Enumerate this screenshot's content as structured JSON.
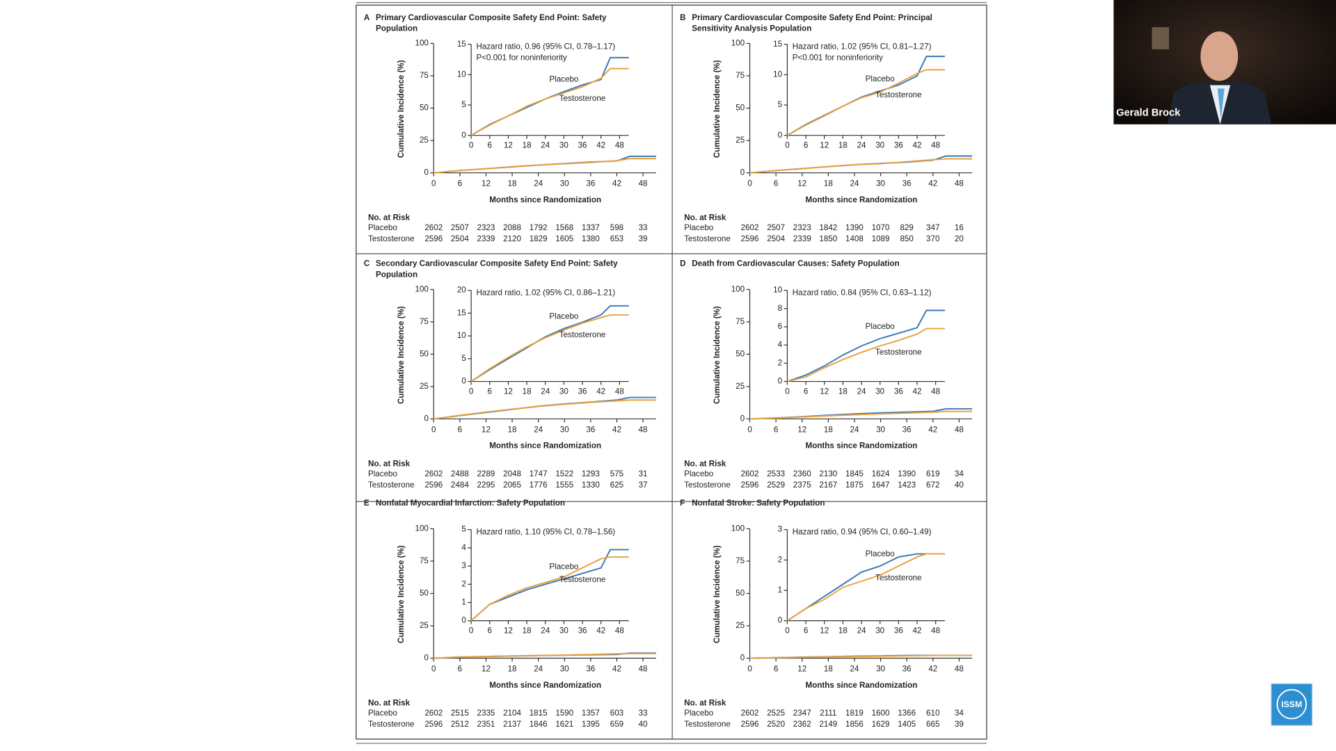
{
  "chart_data": [
    {
      "type": "line",
      "panel": "A",
      "title_lines": [
        "Primary Cardiovascular Composite Safety End Point: Safety",
        "Population"
      ],
      "xlabel": "Months since Randomization",
      "ylabel": "Cumulative Incidence (%)",
      "xlim": [
        0,
        51
      ],
      "xticks": [
        0,
        6,
        12,
        18,
        24,
        30,
        36,
        42,
        48
      ],
      "ylim": [
        0,
        100
      ],
      "yticks": [
        0,
        25,
        50,
        75,
        100
      ],
      "x": [
        0,
        6,
        12,
        18,
        24,
        30,
        36,
        42,
        45,
        51
      ],
      "series": [
        {
          "name": "Placebo",
          "color": "#3b78b5",
          "values": [
            0,
            1.8,
            3.2,
            4.6,
            6.0,
            7.2,
            8.3,
            9.2,
            12.8,
            12.8
          ]
        },
        {
          "name": "Testosterone",
          "color": "#e9a23b",
          "values": [
            0,
            1.7,
            3.2,
            4.8,
            6.0,
            7.0,
            8.0,
            9.4,
            11.0,
            11.0
          ]
        }
      ],
      "inset": {
        "ylim": [
          0,
          15
        ],
        "yticks": [
          0,
          5,
          10,
          15
        ],
        "annotations": [
          "Hazard ratio, 0.96 (95% CI, 0.78–1.17)",
          "P<0.001 for noninferiority"
        ]
      },
      "risk_table": {
        "title": "No. at Risk",
        "rows": [
          {
            "name": "Placebo",
            "values": [
              2602,
              2507,
              2323,
              2088,
              1792,
              1568,
              1337,
              598,
              33
            ]
          },
          {
            "name": "Testosterone",
            "values": [
              2596,
              2504,
              2339,
              2120,
              1829,
              1605,
              1380,
              653,
              39
            ]
          }
        ]
      }
    },
    {
      "type": "line",
      "panel": "B",
      "title_lines": [
        "Primary Cardiovascular Composite Safety End Point: Principal",
        "Sensitivity Analysis Population"
      ],
      "xlabel": "Months since Randomization",
      "ylabel": "Cumulative Incidence (%)",
      "xlim": [
        0,
        51
      ],
      "xticks": [
        0,
        6,
        12,
        18,
        24,
        30,
        36,
        42,
        48
      ],
      "ylim": [
        0,
        100
      ],
      "yticks": [
        0,
        25,
        50,
        75,
        100
      ],
      "x": [
        0,
        6,
        12,
        18,
        24,
        30,
        36,
        42,
        45,
        51
      ],
      "series": [
        {
          "name": "Placebo",
          "color": "#3b78b5",
          "values": [
            0,
            1.8,
            3.3,
            4.8,
            6.3,
            7.3,
            8.3,
            9.8,
            13.0,
            13.0
          ]
        },
        {
          "name": "Testosterone",
          "color": "#e9a23b",
          "values": [
            0,
            1.7,
            3.2,
            4.8,
            6.2,
            7.1,
            8.6,
            10.2,
            10.8,
            10.8
          ]
        }
      ],
      "inset": {
        "ylim": [
          0,
          15
        ],
        "yticks": [
          0,
          5,
          10,
          15
        ],
        "annotations": [
          "Hazard ratio, 1.02 (95% CI, 0.81–1.27)",
          "P<0.001 for noninferiority"
        ]
      },
      "risk_table": {
        "title": "No. at Risk",
        "rows": [
          {
            "name": "Placebo",
            "values": [
              2602,
              2507,
              2323,
              1842,
              1390,
              1070,
              829,
              347,
              16
            ]
          },
          {
            "name": "Testosterone",
            "values": [
              2596,
              2504,
              2339,
              1850,
              1408,
              1089,
              850,
              370,
              20
            ]
          }
        ]
      }
    },
    {
      "type": "line",
      "panel": "C",
      "title_lines": [
        "Secondary Cardiovascular Composite Safety End Point: Safety",
        "Population"
      ],
      "xlabel": "Months since Randomization",
      "ylabel": "Cumulative Incidence (%)",
      "xlim": [
        0,
        51
      ],
      "xticks": [
        0,
        6,
        12,
        18,
        24,
        30,
        36,
        42,
        48
      ],
      "ylim": [
        0,
        100
      ],
      "yticks": [
        0,
        25,
        50,
        75,
        100
      ],
      "x": [
        0,
        6,
        12,
        18,
        24,
        30,
        36,
        42,
        45,
        51
      ],
      "series": [
        {
          "name": "Placebo",
          "color": "#3b78b5",
          "values": [
            0,
            2.6,
            5.0,
            7.4,
            9.8,
            11.6,
            13.0,
            14.6,
            16.6,
            16.6
          ]
        },
        {
          "name": "Testosterone",
          "color": "#e9a23b",
          "values": [
            0,
            2.8,
            5.3,
            7.6,
            9.6,
            11.3,
            12.8,
            14.0,
            14.6,
            14.6
          ]
        }
      ],
      "inset": {
        "ylim": [
          0,
          20
        ],
        "yticks": [
          0,
          5,
          10,
          15,
          20
        ],
        "annotations": [
          "Hazard ratio, 1.02 (95% CI, 0.86–1.21)"
        ]
      },
      "risk_table": {
        "title": "No. at Risk",
        "rows": [
          {
            "name": "Placebo",
            "values": [
              2602,
              2488,
              2289,
              2048,
              1747,
              1522,
              1293,
              575,
              31
            ]
          },
          {
            "name": "Testosterone",
            "values": [
              2596,
              2484,
              2295,
              2065,
              1776,
              1555,
              1330,
              625,
              37
            ]
          }
        ]
      }
    },
    {
      "type": "line",
      "panel": "D",
      "title_lines": [
        "Death from Cardiovascular Causes: Safety Population"
      ],
      "xlabel": "Months since Randomization",
      "ylabel": "Cumulative Incidence (%)",
      "xlim": [
        0,
        51
      ],
      "xticks": [
        0,
        6,
        12,
        18,
        24,
        30,
        36,
        42,
        48
      ],
      "ylim": [
        0,
        100
      ],
      "yticks": [
        0,
        25,
        50,
        75,
        100
      ],
      "x": [
        0,
        6,
        12,
        18,
        24,
        30,
        36,
        42,
        45,
        51
      ],
      "series": [
        {
          "name": "Placebo",
          "color": "#3b78b5",
          "values": [
            0,
            0.7,
            1.7,
            2.9,
            3.9,
            4.7,
            5.3,
            5.9,
            7.8,
            7.8
          ]
        },
        {
          "name": "Testosterone",
          "color": "#e9a23b",
          "values": [
            0,
            0.5,
            1.5,
            2.4,
            3.2,
            3.9,
            4.5,
            5.2,
            5.8,
            5.8
          ]
        }
      ],
      "inset": {
        "ylim": [
          0,
          10
        ],
        "yticks": [
          0,
          2,
          4,
          6,
          8,
          10
        ],
        "annotations": [
          "Hazard ratio, 0.84 (95% CI, 0.63–1.12)"
        ]
      },
      "risk_table": {
        "title": "No. at Risk",
        "rows": [
          {
            "name": "Placebo",
            "values": [
              2602,
              2533,
              2360,
              2130,
              1845,
              1624,
              1390,
              619,
              34
            ]
          },
          {
            "name": "Testosterone",
            "values": [
              2596,
              2529,
              2375,
              2167,
              1875,
              1647,
              1423,
              672,
              40
            ]
          }
        ]
      }
    },
    {
      "type": "line",
      "panel": "E",
      "title_lines": [
        "Nonfatal Myocardial Infarction: Safety Population"
      ],
      "xlabel": "Months since Randomization",
      "ylabel": "Cumulative Incidence (%)",
      "xlim": [
        0,
        51
      ],
      "xticks": [
        0,
        6,
        12,
        18,
        24,
        30,
        36,
        42,
        48
      ],
      "ylim": [
        0,
        100
      ],
      "yticks": [
        0,
        25,
        50,
        75,
        100
      ],
      "x": [
        0,
        6,
        12,
        18,
        24,
        30,
        36,
        42,
        45,
        51
      ],
      "series": [
        {
          "name": "Placebo",
          "color": "#3b78b5",
          "values": [
            0,
            0.9,
            1.3,
            1.7,
            2.0,
            2.3,
            2.6,
            2.9,
            3.9,
            3.9
          ]
        },
        {
          "name": "Testosterone",
          "color": "#e9a23b",
          "values": [
            0,
            0.9,
            1.4,
            1.8,
            2.1,
            2.4,
            2.9,
            3.4,
            3.5,
            3.5
          ]
        }
      ],
      "inset": {
        "ylim": [
          0,
          5
        ],
        "yticks": [
          0,
          1,
          2,
          3,
          4,
          5
        ],
        "annotations": [
          "Hazard ratio, 1.10 (95% CI, 0.78–1.56)"
        ]
      },
      "risk_table": {
        "title": "No. at Risk",
        "rows": [
          {
            "name": "Placebo",
            "values": [
              2602,
              2515,
              2335,
              2104,
              1815,
              1590,
              1357,
              603,
              33
            ]
          },
          {
            "name": "Testosterone",
            "values": [
              2596,
              2512,
              2351,
              2137,
              1846,
              1621,
              1395,
              659,
              40
            ]
          }
        ]
      }
    },
    {
      "type": "line",
      "panel": "F",
      "title_lines": [
        "Nonfatal Stroke: Safety Population"
      ],
      "xlabel": "Months since Randomization",
      "ylabel": "Cumulative Incidence (%)",
      "xlim": [
        0,
        51
      ],
      "xticks": [
        0,
        6,
        12,
        18,
        24,
        30,
        36,
        42,
        48
      ],
      "ylim": [
        0,
        100
      ],
      "yticks": [
        0,
        25,
        50,
        75,
        100
      ],
      "x": [
        0,
        6,
        12,
        18,
        24,
        30,
        36,
        42,
        45,
        51
      ],
      "series": [
        {
          "name": "Placebo",
          "color": "#3b78b5",
          "values": [
            0,
            0.4,
            0.8,
            1.2,
            1.6,
            1.8,
            2.1,
            2.2,
            2.2,
            2.2
          ]
        },
        {
          "name": "Testosterone",
          "color": "#e9a23b",
          "values": [
            0,
            0.4,
            0.7,
            1.1,
            1.3,
            1.5,
            1.8,
            2.1,
            2.2,
            2.2
          ]
        }
      ],
      "inset": {
        "ylim": [
          0,
          3
        ],
        "yticks": [
          0,
          1,
          2,
          3
        ],
        "annotations": [
          "Hazard ratio, 0.94 (95% CI, 0.60–1.49)"
        ]
      },
      "risk_table": {
        "title": "No. at Risk",
        "rows": [
          {
            "name": "Placebo",
            "values": [
              2602,
              2525,
              2347,
              2111,
              1819,
              1600,
              1366,
              610,
              34
            ]
          },
          {
            "name": "Testosterone",
            "values": [
              2596,
              2520,
              2362,
              2149,
              1856,
              1629,
              1405,
              665,
              39
            ]
          }
        ]
      }
    }
  ],
  "presenter": {
    "name": "Gerald Brock"
  },
  "logo": {
    "text": "ISSM"
  }
}
